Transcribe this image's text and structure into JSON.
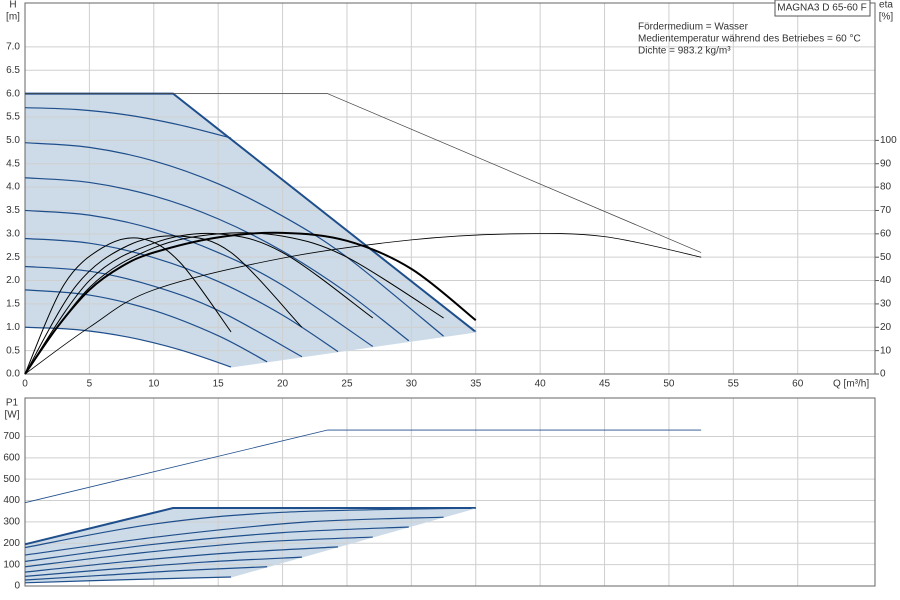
{
  "chart_data": [
    {
      "type": "line",
      "title": "MAGNA3 D 65-60 F",
      "annotations": [
        "Fördermedium = Wasser",
        "Medientemperatur während des Betriebes = 60 °C",
        "Dichte = 983.2 kg/m³"
      ],
      "y_label": "H",
      "y_unit": "[m]",
      "y2_label": "eta",
      "y2_unit": "[%]",
      "x_label": "Q [m³/h]",
      "xlim": [
        0,
        66
      ],
      "xticks": [
        0,
        5,
        10,
        15,
        20,
        25,
        30,
        35,
        40,
        45,
        50,
        55,
        60
      ],
      "ylim": [
        0,
        7.94
      ],
      "yticks": [
        {
          "value": 0,
          "label": "0.0"
        },
        {
          "value": 0.5,
          "label": "0.5"
        },
        {
          "value": 1,
          "label": "1.0"
        },
        {
          "value": 1.5,
          "label": "1.5"
        },
        {
          "value": 2,
          "label": "2.0"
        },
        {
          "value": 2.5,
          "label": "2.5"
        },
        {
          "value": 3,
          "label": "3.0"
        },
        {
          "value": 3.5,
          "label": "3.5"
        },
        {
          "value": 4,
          "label": "4.0"
        },
        {
          "value": 4.5,
          "label": "4.5"
        },
        {
          "value": 5,
          "label": "5.0"
        },
        {
          "value": 5.5,
          "label": "5.5"
        },
        {
          "value": 6,
          "label": "6.0"
        },
        {
          "value": 6.5,
          "label": "6.5"
        },
        {
          "value": 7,
          "label": "7.0"
        }
      ],
      "y2lim": [
        0,
        158.8
      ],
      "y2ticks": [
        0,
        10,
        20,
        30,
        40,
        50,
        60,
        70,
        80,
        90,
        100
      ],
      "grid": true,
      "shade_color": "#ccdbe7",
      "shade": [
        0,
        1,
        2
      ],
      "series": [
        {
          "color": "#1f4e8c",
          "line_width": 2,
          "x": [
            0,
            11.5,
            35
          ],
          "values": [
            6,
            6,
            0.9
          ]
        },
        {
          "color": "#ccdbe7",
          "line_width": 1,
          "x": [
            16,
            35
          ],
          "values": [
            0.15,
            0.9
          ]
        },
        {
          "color": "#1f4e8c",
          "line_width": 1.2,
          "smooth": true,
          "x": [
            0,
            4,
            8,
            12,
            16
          ],
          "values": [
            1.0,
            0.95,
            0.79,
            0.52,
            0.15
          ]
        },
        {
          "color": "#1f4e8c",
          "line_width": 1.2,
          "smooth": true,
          "x": [
            0,
            5,
            10,
            15,
            18.8
          ],
          "values": [
            1.8,
            1.69,
            1.36,
            0.82,
            0.26
          ]
        },
        {
          "color": "#1f4e8c",
          "line_width": 1.2,
          "smooth": true,
          "x": [
            0,
            5,
            10,
            15,
            21.5
          ],
          "values": [
            2.3,
            2.2,
            1.88,
            1.36,
            0.37
          ]
        },
        {
          "color": "#1f4e8c",
          "line_width": 1.2,
          "smooth": true,
          "x": [
            0,
            5,
            10,
            15,
            20,
            24.3
          ],
          "values": [
            2.9,
            2.8,
            2.49,
            1.98,
            1.26,
            0.48
          ]
        },
        {
          "color": "#1f4e8c",
          "line_width": 1.2,
          "smooth": true,
          "x": [
            0,
            5,
            10,
            15,
            20,
            27
          ],
          "values": [
            3.5,
            3.4,
            3.1,
            2.6,
            1.9,
            0.59
          ]
        },
        {
          "color": "#1f4e8c",
          "line_width": 1.2,
          "smooth": true,
          "x": [
            0,
            5,
            10,
            15,
            20,
            25,
            29.8
          ],
          "values": [
            4.2,
            4.1,
            3.81,
            3.32,
            2.63,
            1.74,
            0.71
          ]
        },
        {
          "color": "#1f4e8c",
          "line_width": 1.2,
          "smooth": true,
          "x": [
            0,
            5,
            10,
            15,
            20,
            25,
            32.5
          ],
          "values": [
            4.95,
            4.85,
            4.56,
            4.07,
            3.38,
            2.5,
            0.81
          ]
        },
        {
          "color": "#1f4e8c",
          "line_width": 1.2,
          "smooth": true,
          "x": [
            0,
            4,
            8,
            12,
            16
          ],
          "values": [
            5.7,
            5.66,
            5.54,
            5.33,
            5.05
          ]
        },
        {
          "color": "#444444",
          "line_width": 0.7,
          "x": [
            0,
            23.5,
            52.5
          ],
          "values": [
            6,
            6,
            2.6
          ]
        },
        {
          "color": "#000000",
          "line_width": 2,
          "smooth": true,
          "axis": "y2",
          "x": [
            0,
            2.5,
            5,
            7.5,
            10,
            15,
            20,
            25,
            30,
            35
          ],
          "values": [
            0,
            20,
            36,
            46,
            52,
            58.5,
            60.4,
            57,
            45,
            23
          ]
        },
        {
          "color": "#000000",
          "line_width": 0.8,
          "smooth": true,
          "axis": "y2",
          "x": [
            0,
            5,
            10,
            20,
            30,
            38,
            45,
            52.5
          ],
          "values": [
            0,
            20,
            36,
            49.6,
            57.4,
            60,
            58.8,
            50
          ]
        },
        {
          "color": "#000000",
          "line_width": 1,
          "smooth": true,
          "axis": "y2",
          "x": [
            0,
            3,
            6,
            9,
            12,
            16
          ],
          "values": [
            0,
            38,
            54,
            58,
            48,
            18
          ]
        },
        {
          "color": "#000000",
          "line_width": 1,
          "smooth": true,
          "axis": "y2",
          "x": [
            0,
            4,
            8,
            12,
            16,
            21.5
          ],
          "values": [
            0,
            38,
            55,
            59,
            52,
            20
          ]
        },
        {
          "color": "#000000",
          "line_width": 1,
          "smooth": true,
          "axis": "y2",
          "x": [
            0,
            5,
            10,
            15,
            20,
            27
          ],
          "values": [
            0,
            40,
            56,
            60,
            52,
            24
          ]
        },
        {
          "color": "#000000",
          "line_width": 1,
          "smooth": true,
          "axis": "y2",
          "x": [
            0,
            5,
            10,
            15,
            20,
            25,
            32.5
          ],
          "values": [
            0,
            37,
            54,
            60,
            59,
            50,
            24
          ]
        }
      ]
    },
    {
      "type": "line",
      "y_label": "P1",
      "y_unit": "[W]",
      "xlim": [
        0,
        66
      ],
      "xticks": [
        0,
        5,
        10,
        15,
        20,
        25,
        30,
        35,
        40,
        45,
        50,
        55,
        60
      ],
      "ylim": [
        0,
        880
      ],
      "yticks": [
        0,
        100,
        200,
        300,
        400,
        500,
        600,
        700
      ],
      "grid": true,
      "shade_color": "#ccdbe7",
      "shade": [
        0,
        1,
        2
      ],
      "series": [
        {
          "color": "#1f4e8c",
          "line_width": 2,
          "x": [
            0,
            11.5,
            35
          ],
          "values": [
            195,
            365,
            365
          ]
        },
        {
          "color": "#ccdbe7",
          "line_width": 1,
          "x": [
            16,
            35
          ],
          "values": [
            42,
            365
          ]
        },
        {
          "color": "#1f4e8c",
          "line_width": 1.2,
          "smooth": true,
          "x": [
            0,
            8,
            16
          ],
          "values": [
            15,
            30,
            42
          ]
        },
        {
          "color": "#1f4e8c",
          "line_width": 1.2,
          "smooth": true,
          "x": [
            0,
            6,
            12,
            18.8
          ],
          "values": [
            28,
            50,
            72,
            90
          ]
        },
        {
          "color": "#1f4e8c",
          "line_width": 1.2,
          "smooth": true,
          "x": [
            0,
            7,
            14,
            21.5
          ],
          "values": [
            45,
            80,
            112,
            135
          ]
        },
        {
          "color": "#1f4e8c",
          "line_width": 1.2,
          "smooth": true,
          "x": [
            0,
            8,
            16,
            24.3
          ],
          "values": [
            65,
            115,
            155,
            183
          ]
        },
        {
          "color": "#1f4e8c",
          "line_width": 1.2,
          "smooth": true,
          "x": [
            0,
            9,
            18,
            27
          ],
          "values": [
            90,
            155,
            205,
            229
          ]
        },
        {
          "color": "#1f4e8c",
          "line_width": 1.2,
          "smooth": true,
          "x": [
            0,
            10,
            20,
            29.8
          ],
          "values": [
            115,
            195,
            250,
            276
          ]
        },
        {
          "color": "#1f4e8c",
          "line_width": 1.2,
          "smooth": true,
          "x": [
            0,
            11,
            22,
            32.5
          ],
          "values": [
            145,
            235,
            300,
            322
          ]
        },
        {
          "color": "#1f4e8c",
          "line_width": 1.2,
          "smooth": true,
          "x": [
            0,
            10,
            20,
            35
          ],
          "values": [
            180,
            290,
            345,
            365
          ]
        },
        {
          "color": "#1f4e8c",
          "line_width": 0.8,
          "x": [
            0,
            23.5,
            52.5
          ],
          "values": [
            390,
            730,
            730
          ]
        }
      ]
    }
  ]
}
